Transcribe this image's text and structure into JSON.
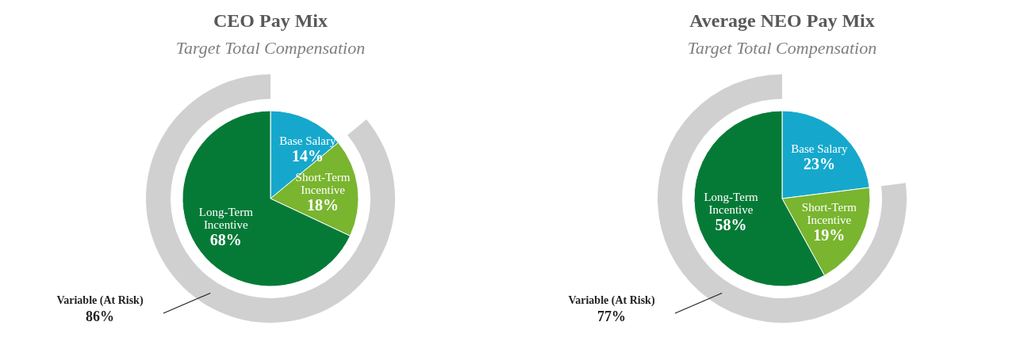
{
  "chart_data": [
    {
      "type": "pie",
      "title": "CEO Pay Mix",
      "subtitle": "Target Total Compensation",
      "categories": [
        "Base Salary",
        "Short-Term Incentive",
        "Long-Term Incentive"
      ],
      "values": [
        14,
        18,
        68
      ],
      "colors": [
        "#16a8cc",
        "#79b52f",
        "#057a37"
      ],
      "value_labels": [
        "14%",
        "18%",
        "68%"
      ],
      "annotations": [
        "Variable (At Risk)",
        "86%"
      ]
    },
    {
      "type": "pie",
      "title": "Average NEO Pay Mix",
      "subtitle": "Target Total Compensation",
      "categories": [
        "Base Salary",
        "Short-Term Incentive",
        "Long-Term Incentive"
      ],
      "values": [
        23,
        19,
        58
      ],
      "colors": [
        "#16a8cc",
        "#79b52f",
        "#057a37"
      ],
      "value_labels": [
        "23%",
        "19%",
        "58%"
      ],
      "annotations": [
        "Variable (At Risk)",
        "77%"
      ]
    }
  ]
}
